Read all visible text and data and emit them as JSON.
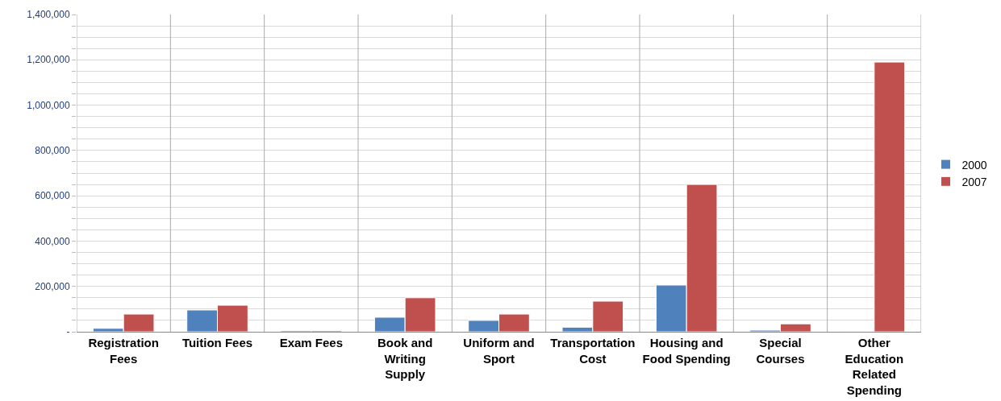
{
  "chart_data": {
    "type": "bar",
    "categories": [
      "Registration Fees",
      "Tuition Fees",
      "Exam Fees",
      "Book and Writing Supply",
      "Uniform and Sport",
      "Transportation Cost",
      "Housing and Food Spending",
      "Special Courses",
      "Other Education Related Spending"
    ],
    "series": [
      {
        "name": "2000",
        "color": "#4f81bd",
        "values": [
          15000,
          96000,
          5000,
          64000,
          50000,
          20000,
          206000,
          7000,
          2000
        ]
      },
      {
        "name": "2007",
        "color": "#c0504d",
        "values": [
          78000,
          117000,
          5000,
          150000,
          78000,
          135000,
          650000,
          35000,
          1190000
        ]
      }
    ],
    "ylim": [
      0,
      1400000
    ],
    "yticks": [
      {
        "value": 0,
        "label": "-"
      },
      {
        "value": 50000,
        "label": null
      },
      {
        "value": 100000,
        "label": null
      },
      {
        "value": 150000,
        "label": null
      },
      {
        "value": 200000,
        "label": "200,000"
      },
      {
        "value": 250000,
        "label": null
      },
      {
        "value": 300000,
        "label": null
      },
      {
        "value": 350000,
        "label": null
      },
      {
        "value": 400000,
        "label": "400,000"
      },
      {
        "value": 450000,
        "label": null
      },
      {
        "value": 500000,
        "label": null
      },
      {
        "value": 550000,
        "label": null
      },
      {
        "value": 600000,
        "label": "600,000"
      },
      {
        "value": 650000,
        "label": null
      },
      {
        "value": 700000,
        "label": null
      },
      {
        "value": 750000,
        "label": null
      },
      {
        "value": 800000,
        "label": "800,000"
      },
      {
        "value": 850000,
        "label": null
      },
      {
        "value": 900000,
        "label": null
      },
      {
        "value": 950000,
        "label": null
      },
      {
        "value": 1000000,
        "label": "1,000,000"
      },
      {
        "value": 1050000,
        "label": null
      },
      {
        "value": 1100000,
        "label": null
      },
      {
        "value": 1150000,
        "label": null
      },
      {
        "value": 1200000,
        "label": "1,200,000"
      },
      {
        "value": 1250000,
        "label": null
      },
      {
        "value": 1300000,
        "label": null
      },
      {
        "value": 1350000,
        "label": null
      },
      {
        "value": 1400000,
        "label": "1,400,000"
      }
    ],
    "grid": true,
    "legend": "right"
  }
}
